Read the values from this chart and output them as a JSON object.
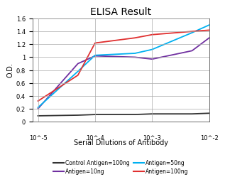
{
  "title": "ELISA Result",
  "ylabel": "O.D.",
  "xlabel": "Serial Dilutions of Antibody",
  "ylim": [
    0,
    1.6
  ],
  "yticks": [
    0,
    0.2,
    0.4,
    0.6,
    0.8,
    1.0,
    1.2,
    1.4,
    1.6
  ],
  "ytick_labels": [
    "0",
    "0.2",
    "0.4",
    "0.6",
    "0.8",
    "1",
    "1.2",
    "1.4",
    "1.6"
  ],
  "xtick_positions": [
    0.01,
    0.001,
    0.0001,
    1e-05
  ],
  "xtick_labels": [
    "10^-2",
    "10^-3",
    "10^-4",
    "10^-5"
  ],
  "lines": [
    {
      "label": "Control Antigen=100ng",
      "color": "#333333",
      "x": [
        0.01,
        0.005,
        0.001,
        0.0005,
        0.0001,
        5e-05,
        1e-05
      ],
      "y": [
        0.13,
        0.12,
        0.12,
        0.11,
        0.11,
        0.1,
        0.09
      ]
    },
    {
      "label": "Antigen=10ng",
      "color": "#7030a0",
      "x": [
        0.01,
        0.005,
        0.001,
        0.0005,
        0.0001,
        5e-05,
        1e-05
      ],
      "y": [
        1.3,
        1.1,
        0.97,
        1.0,
        1.02,
        0.9,
        0.2
      ]
    },
    {
      "label": "Antigen=50ng",
      "color": "#00b0f0",
      "x": [
        0.01,
        0.005,
        0.001,
        0.0005,
        0.0001,
        5e-05,
        1e-05
      ],
      "y": [
        1.5,
        1.38,
        1.12,
        1.06,
        1.03,
        0.78,
        0.22
      ]
    },
    {
      "label": "Antigen=100ng",
      "color": "#e03030",
      "x": [
        0.01,
        0.005,
        0.001,
        0.0005,
        0.0001,
        5e-05,
        1e-05
      ],
      "y": [
        1.42,
        1.4,
        1.35,
        1.3,
        1.22,
        0.72,
        0.32
      ]
    }
  ],
  "legend_entries": [
    {
      "label": "Control Antigen=100ng",
      "color": "#333333"
    },
    {
      "label": "Antigen=10ng",
      "color": "#7030a0"
    },
    {
      "label": "Antigen=50ng",
      "color": "#00b0f0"
    },
    {
      "label": "Antigen=100ng",
      "color": "#e03030"
    }
  ],
  "background_color": "#ffffff",
  "title_fontsize": 10,
  "axis_label_fontsize": 7,
  "tick_fontsize": 6,
  "legend_fontsize": 5.5,
  "linewidth": 1.3
}
